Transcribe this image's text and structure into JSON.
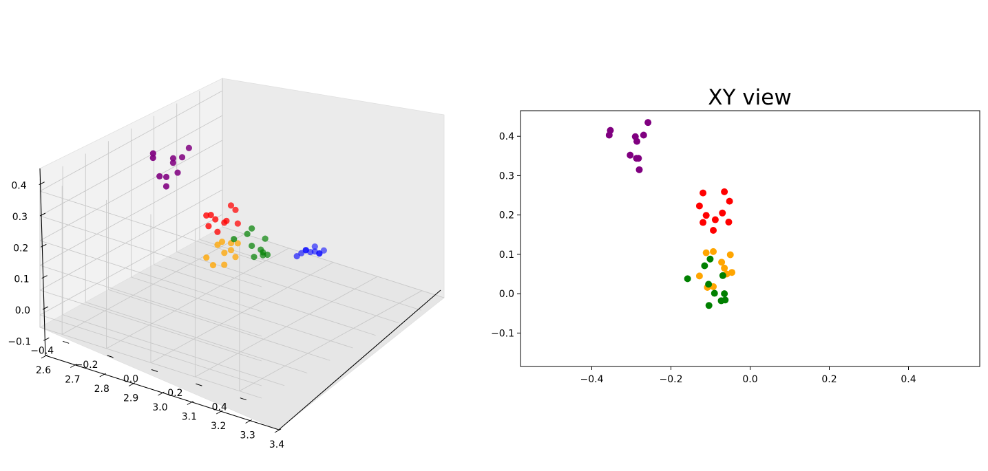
{
  "chart_data": [
    {
      "type": "scatter",
      "projection": "3d",
      "title": "",
      "xlabel": "",
      "ylabel": "",
      "zlabel": "",
      "xlim": [
        -0.5,
        0.5
      ],
      "ylim": [
        2.6,
        3.4
      ],
      "zlim": [
        -0.15,
        0.45
      ],
      "x_ticks": [
        -0.4,
        -0.2,
        0.0,
        0.2,
        0.4
      ],
      "x_tick_labels": [
        "−0.4",
        "−0.2",
        "0.0",
        "0.2",
        "0.4"
      ],
      "y_ticks": [
        2.6,
        2.7,
        2.8,
        2.9,
        3.0,
        3.1,
        3.2,
        3.3,
        3.4
      ],
      "y_tick_labels": [
        "2.6",
        "2.7",
        "2.8",
        "2.9",
        "3.0",
        "3.1",
        "3.2",
        "3.3",
        "3.4"
      ],
      "z_ticks": [
        -0.1,
        0.0,
        0.1,
        0.2,
        0.3,
        0.4
      ],
      "z_tick_labels": [
        "−0.1",
        "0.0",
        "0.1",
        "0.2",
        "0.3",
        "0.4"
      ],
      "grid": true,
      "series": [
        {
          "color": "#800080",
          "x": [
            -0.35,
            -0.36,
            -0.29,
            -0.28,
            -0.27,
            -0.26,
            -0.3,
            -0.28,
            -0.28,
            -0.29
          ],
          "y": [
            2.95,
            2.96,
            2.98,
            2.97,
            3.0,
            3.02,
            2.93,
            2.99,
            2.94,
            2.95
          ],
          "z": [
            0.4,
            0.41,
            0.4,
            0.39,
            0.4,
            0.43,
            0.35,
            0.34,
            0.31,
            0.34
          ]
        },
        {
          "color": "#ff0000",
          "x": [
            -0.12,
            -0.06,
            -0.13,
            -0.05,
            -0.11,
            -0.07,
            -0.12,
            -0.08,
            -0.05,
            -0.09
          ],
          "y": [
            2.98,
            3.01,
            2.97,
            3.02,
            2.99,
            3.0,
            2.97,
            3.0,
            3.03,
            2.98
          ],
          "z": [
            0.22,
            0.26,
            0.22,
            0.24,
            0.2,
            0.2,
            0.18,
            0.19,
            0.18,
            0.16
          ]
        },
        {
          "color": "#ffa500",
          "x": [
            -0.07,
            -0.09,
            -0.05,
            -0.06,
            -0.13,
            -0.08,
            -0.11,
            -0.05,
            -0.1,
            -0.09
          ],
          "y": [
            3.02,
            3.0,
            3.03,
            3.01,
            2.97,
            3.0,
            2.98,
            3.02,
            2.99,
            3.01
          ],
          "z": [
            0.1,
            0.11,
            0.1,
            0.08,
            0.05,
            0.02,
            0.02,
            0.05,
            0.1,
            0.06
          ]
        },
        {
          "color": "#008000",
          "x": [
            -0.16,
            -0.11,
            -0.1,
            -0.06,
            -0.06,
            -0.08,
            -0.06,
            -0.07,
            -0.1,
            -0.1
          ],
          "y": [
            3.12,
            3.13,
            3.14,
            3.16,
            3.15,
            3.16,
            3.17,
            3.16,
            3.14,
            3.15
          ],
          "z": [
            0.04,
            0.07,
            0.09,
            0.05,
            0.0,
            0.0,
            -0.02,
            -0.02,
            0.02,
            -0.03
          ]
        },
        {
          "color": "#0000ff",
          "x": [
            -0.02,
            0.0,
            -0.01,
            0.02,
            0.03,
            0.01,
            0.04,
            0.03,
            0.0,
            0.02
          ],
          "y": [
            3.26,
            3.28,
            3.27,
            3.3,
            3.31,
            3.29,
            3.32,
            3.31,
            3.28,
            3.3
          ],
          "z": [
            -0.06,
            -0.04,
            -0.05,
            -0.05,
            -0.06,
            -0.05,
            -0.05,
            -0.06,
            -0.04,
            -0.03
          ]
        }
      ]
    },
    {
      "type": "scatter",
      "title": "XY view",
      "xlabel": "",
      "ylabel": "",
      "xlim": [
        -0.58,
        0.58
      ],
      "ylim": [
        -0.185,
        0.465
      ],
      "x_ticks": [
        -0.4,
        -0.2,
        0.0,
        0.2,
        0.4
      ],
      "x_tick_labels": [
        "−0.4",
        "−0.2",
        "0.0",
        "0.2",
        "0.4"
      ],
      "y_ticks": [
        -0.1,
        0.0,
        0.1,
        0.2,
        0.3,
        0.4
      ],
      "y_tick_labels": [
        "−0.1",
        "0.0",
        "0.1",
        "0.2",
        "0.3",
        "0.4"
      ],
      "grid": false,
      "series": [
        {
          "color": "#800080",
          "x": [
            -0.353,
            -0.356,
            -0.29,
            -0.286,
            -0.269,
            -0.258,
            -0.303,
            -0.287,
            -0.282,
            -0.28
          ],
          "y": [
            0.415,
            0.403,
            0.399,
            0.387,
            0.403,
            0.435,
            0.352,
            0.344,
            0.344,
            0.315
          ]
        },
        {
          "color": "#ff0000",
          "x": [
            -0.119,
            -0.065,
            -0.128,
            -0.052,
            -0.111,
            -0.07,
            -0.119,
            -0.088,
            -0.054,
            -0.093
          ],
          "y": [
            0.256,
            0.259,
            0.223,
            0.235,
            0.199,
            0.205,
            0.181,
            0.188,
            0.182,
            0.161
          ]
        },
        {
          "color": "#ffa500",
          "x": [
            -0.111,
            -0.093,
            -0.05,
            -0.072,
            -0.065,
            -0.046,
            -0.059,
            -0.128,
            -0.108,
            -0.093
          ],
          "y": [
            0.104,
            0.107,
            0.099,
            0.08,
            0.065,
            0.054,
            0.05,
            0.045,
            0.016,
            0.018
          ]
        },
        {
          "color": "#008000",
          "x": [
            -0.158,
            -0.115,
            -0.101,
            -0.069,
            -0.105,
            -0.065,
            -0.09,
            -0.073,
            -0.063,
            -0.104
          ],
          "y": [
            0.038,
            0.071,
            0.088,
            0.046,
            0.024,
            0.0,
            0.001,
            -0.018,
            -0.016,
            -0.03
          ]
        }
      ]
    }
  ]
}
